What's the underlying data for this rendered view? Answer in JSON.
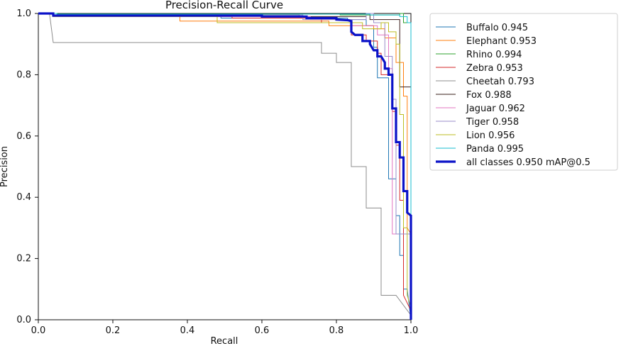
{
  "chart_data": {
    "type": "line",
    "title": "Precision-Recall Curve",
    "xlabel": "Recall",
    "ylabel": "Precision",
    "xlim": [
      0,
      1
    ],
    "ylim": [
      0,
      1
    ],
    "xticks": [
      0,
      0.2,
      0.4,
      0.6,
      0.8,
      1
    ],
    "xtick_labels": [
      "0.0",
      "0.2",
      "0.4",
      "0.6",
      "0.8",
      "1.0"
    ],
    "yticks": [
      0,
      0.2,
      0.4,
      0.6,
      0.8,
      1
    ],
    "ytick_labels": [
      "0.0",
      "0.2",
      "0.4",
      "0.6",
      "0.8",
      "1.0"
    ],
    "grid": false,
    "legend_position": "right",
    "series": [
      {
        "name": "Buffalo 0.945",
        "label": "Buffalo 0.945",
        "color": "#1f77b4",
        "width": 1,
        "points": [
          [
            0,
            1
          ],
          [
            0.04,
            1
          ],
          [
            0.04,
            0.99
          ],
          [
            0.49,
            0.99
          ],
          [
            0.49,
            0.985
          ],
          [
            0.83,
            0.985
          ],
          [
            0.83,
            0.98
          ],
          [
            0.88,
            0.98
          ],
          [
            0.88,
            0.96
          ],
          [
            0.9,
            0.96
          ],
          [
            0.9,
            0.94
          ],
          [
            0.9,
            0.89
          ],
          [
            0.91,
            0.89
          ],
          [
            0.91,
            0.79
          ],
          [
            0.94,
            0.79
          ],
          [
            0.94,
            0.46
          ],
          [
            0.96,
            0.46
          ],
          [
            0.96,
            0.34
          ],
          [
            0.97,
            0.34
          ],
          [
            0.97,
            0.21
          ],
          [
            0.98,
            0.21
          ],
          [
            0.98,
            0.1
          ],
          [
            0.99,
            0.1
          ],
          [
            1,
            0
          ]
        ]
      },
      {
        "name": "Elephant 0.953",
        "label": "Elephant 0.953",
        "color": "#ff7f0e",
        "width": 1,
        "points": [
          [
            0,
            1
          ],
          [
            0.04,
            1
          ],
          [
            0.04,
            0.99
          ],
          [
            0.38,
            0.99
          ],
          [
            0.38,
            0.975
          ],
          [
            0.78,
            0.975
          ],
          [
            0.78,
            0.96
          ],
          [
            0.9,
            0.96
          ],
          [
            0.9,
            0.95
          ],
          [
            0.93,
            0.95
          ],
          [
            0.93,
            0.92
          ],
          [
            0.96,
            0.92
          ],
          [
            0.96,
            0.84
          ],
          [
            0.98,
            0.84
          ],
          [
            0.98,
            0.73
          ],
          [
            0.99,
            0.73
          ],
          [
            0.99,
            0.3
          ],
          [
            1,
            0.28
          ],
          [
            1,
            0
          ]
        ]
      },
      {
        "name": "Rhino 0.994",
        "label": "Rhino 0.994",
        "color": "#2ca02c",
        "width": 1,
        "points": [
          [
            0,
            1
          ],
          [
            0.05,
            1
          ],
          [
            0.05,
            0.998
          ],
          [
            0.81,
            0.998
          ],
          [
            0.81,
            0.995
          ],
          [
            0.97,
            0.995
          ],
          [
            0.97,
            1
          ],
          [
            0.98,
            1
          ],
          [
            0.98,
            0.97
          ],
          [
            1,
            0.97
          ],
          [
            1,
            0
          ]
        ]
      },
      {
        "name": "Zebra 0.953",
        "label": "Zebra 0.953",
        "color": "#d62728",
        "width": 1,
        "points": [
          [
            0,
            1
          ],
          [
            0.04,
            1
          ],
          [
            0.04,
            0.99
          ],
          [
            0.52,
            0.99
          ],
          [
            0.52,
            0.985
          ],
          [
            0.76,
            0.985
          ],
          [
            0.76,
            0.97
          ],
          [
            0.84,
            0.97
          ],
          [
            0.84,
            0.93
          ],
          [
            0.88,
            0.93
          ],
          [
            0.88,
            0.91
          ],
          [
            0.91,
            0.91
          ],
          [
            0.91,
            0.87
          ],
          [
            0.92,
            0.87
          ],
          [
            0.92,
            0.8
          ],
          [
            0.95,
            0.8
          ],
          [
            0.95,
            0.68
          ],
          [
            0.96,
            0.68
          ],
          [
            0.96,
            0.57
          ],
          [
            0.97,
            0.57
          ],
          [
            0.97,
            0.39
          ],
          [
            0.98,
            0.39
          ],
          [
            0.98,
            0.08
          ],
          [
            1,
            0.03
          ],
          [
            1,
            0
          ]
        ]
      },
      {
        "name": "Cheetah 0.793",
        "label": "Cheetah 0.793",
        "color": "#8c8c8c",
        "width": 1,
        "points": [
          [
            0,
            1
          ],
          [
            0.03,
            1
          ],
          [
            0.04,
            0.905
          ],
          [
            0.76,
            0.905
          ],
          [
            0.76,
            0.87
          ],
          [
            0.8,
            0.87
          ],
          [
            0.8,
            0.84
          ],
          [
            0.84,
            0.84
          ],
          [
            0.84,
            0.5
          ],
          [
            0.88,
            0.5
          ],
          [
            0.88,
            0.365
          ],
          [
            0.92,
            0.365
          ],
          [
            0.92,
            0.08
          ],
          [
            0.96,
            0.08
          ],
          [
            1,
            0.015
          ],
          [
            1,
            0
          ]
        ]
      },
      {
        "name": "Fox 0.988",
        "label": "Fox 0.988",
        "color": "#3a1f1a",
        "width": 1,
        "points": [
          [
            0,
            1
          ],
          [
            0.04,
            1
          ],
          [
            0.04,
            0.995
          ],
          [
            0.7,
            0.995
          ],
          [
            0.7,
            0.99
          ],
          [
            0.88,
            0.99
          ],
          [
            0.88,
            1
          ],
          [
            0.89,
            1
          ],
          [
            0.89,
            0.98
          ],
          [
            0.97,
            0.98
          ],
          [
            0.97,
            0.76
          ],
          [
            1,
            0.76
          ],
          [
            1,
            0
          ]
        ]
      },
      {
        "name": "Jaguar 0.962",
        "label": "Jaguar 0.962",
        "color": "#e377c2",
        "width": 1,
        "points": [
          [
            0,
            1
          ],
          [
            0.04,
            1
          ],
          [
            0.04,
            0.99
          ],
          [
            0.73,
            0.99
          ],
          [
            0.73,
            0.98
          ],
          [
            0.84,
            0.98
          ],
          [
            0.84,
            0.96
          ],
          [
            0.91,
            0.96
          ],
          [
            0.91,
            0.93
          ],
          [
            0.94,
            0.93
          ],
          [
            0.94,
            0.82
          ],
          [
            0.95,
            0.82
          ],
          [
            0.95,
            0.28
          ],
          [
            1,
            0.28
          ],
          [
            1,
            0
          ]
        ]
      },
      {
        "name": "Tiger 0.958",
        "label": "Tiger 0.958",
        "color": "#9a8cc9",
        "width": 1,
        "points": [
          [
            0,
            1
          ],
          [
            0.04,
            1
          ],
          [
            0.04,
            0.995
          ],
          [
            0.71,
            0.995
          ],
          [
            0.71,
            0.98
          ],
          [
            0.88,
            0.98
          ],
          [
            0.88,
            1
          ],
          [
            0.9,
            1
          ],
          [
            0.9,
            0.97
          ],
          [
            0.93,
            0.97
          ],
          [
            0.93,
            0.86
          ],
          [
            0.95,
            0.86
          ],
          [
            0.95,
            0.72
          ],
          [
            0.96,
            0.72
          ],
          [
            0.96,
            0.28
          ],
          [
            1,
            0.28
          ],
          [
            1,
            0
          ]
        ]
      },
      {
        "name": "Lion 0.956",
        "label": "Lion 0.956",
        "color": "#bcbd22",
        "width": 1,
        "points": [
          [
            0,
            1
          ],
          [
            0.04,
            1
          ],
          [
            0.04,
            0.99
          ],
          [
            0.48,
            0.99
          ],
          [
            0.48,
            0.97
          ],
          [
            0.87,
            0.97
          ],
          [
            0.87,
            0.95
          ],
          [
            0.92,
            0.95
          ],
          [
            0.92,
            0.97
          ],
          [
            0.94,
            0.97
          ],
          [
            0.94,
            0.94
          ],
          [
            0.96,
            0.94
          ],
          [
            0.96,
            0.9
          ],
          [
            0.97,
            0.9
          ],
          [
            0.97,
            0.67
          ],
          [
            0.98,
            0.67
          ],
          [
            0.98,
            0.3
          ],
          [
            0.99,
            0.3
          ],
          [
            0.99,
            0.08
          ],
          [
            1,
            0.04
          ],
          [
            1,
            0
          ]
        ]
      },
      {
        "name": "Panda 0.995",
        "label": "Panda 0.995",
        "color": "#17becf",
        "width": 1,
        "points": [
          [
            0,
            1
          ],
          [
            0.05,
            1
          ],
          [
            0.05,
            0.998
          ],
          [
            0.89,
            0.998
          ],
          [
            0.89,
            0.995
          ],
          [
            0.97,
            0.995
          ],
          [
            0.97,
            0.99
          ],
          [
            0.99,
            0.99
          ],
          [
            0.99,
            0.97
          ],
          [
            1,
            0.97
          ],
          [
            1,
            0
          ]
        ]
      },
      {
        "name": "all classes 0.950 mAP@0.5",
        "label": "all classes 0.950 mAP@0.5",
        "color": "#0a12c8",
        "width": 3.2,
        "points": [
          [
            0,
            1
          ],
          [
            0.04,
            1
          ],
          [
            0.04,
            0.993
          ],
          [
            0.6,
            0.993
          ],
          [
            0.6,
            0.99
          ],
          [
            0.72,
            0.99
          ],
          [
            0.72,
            0.985
          ],
          [
            0.8,
            0.985
          ],
          [
            0.8,
            0.98
          ],
          [
            0.83,
            0.978
          ],
          [
            0.84,
            0.975
          ],
          [
            0.84,
            0.94
          ],
          [
            0.85,
            0.93
          ],
          [
            0.87,
            0.93
          ],
          [
            0.87,
            0.91
          ],
          [
            0.89,
            0.91
          ],
          [
            0.89,
            0.9
          ],
          [
            0.9,
            0.88
          ],
          [
            0.91,
            0.88
          ],
          [
            0.91,
            0.86
          ],
          [
            0.92,
            0.86
          ],
          [
            0.93,
            0.84
          ],
          [
            0.93,
            0.82
          ],
          [
            0.94,
            0.82
          ],
          [
            0.94,
            0.8
          ],
          [
            0.95,
            0.8
          ],
          [
            0.95,
            0.69
          ],
          [
            0.96,
            0.69
          ],
          [
            0.96,
            0.58
          ],
          [
            0.97,
            0.58
          ],
          [
            0.97,
            0.53
          ],
          [
            0.98,
            0.53
          ],
          [
            0.98,
            0.42
          ],
          [
            0.99,
            0.42
          ],
          [
            0.99,
            0.35
          ],
          [
            1,
            0.34
          ],
          [
            1,
            0
          ]
        ]
      }
    ]
  }
}
